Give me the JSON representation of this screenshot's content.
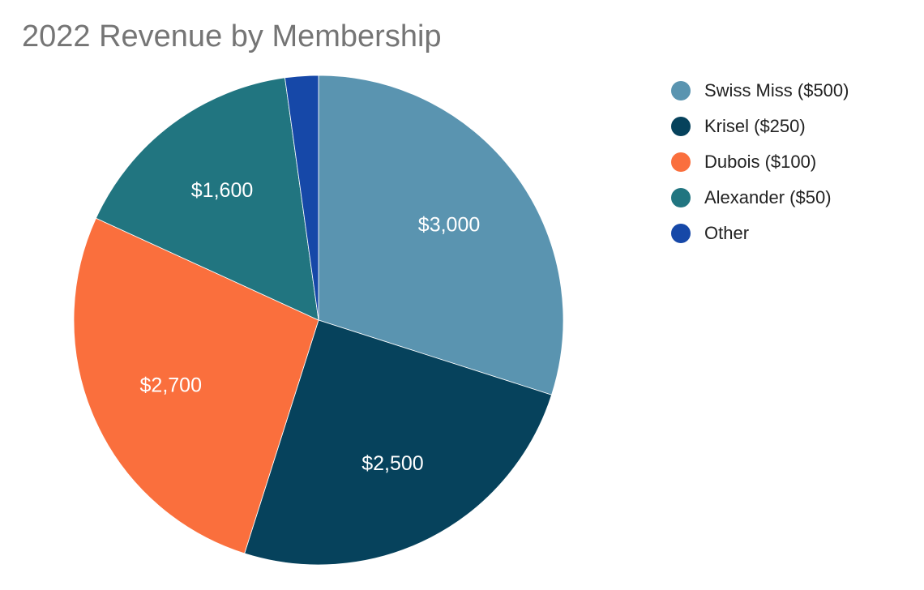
{
  "chart_data": {
    "type": "pie",
    "title": "2022 Revenue by Membership",
    "legend_position": "right",
    "slices": [
      {
        "name": "Swiss Miss ($500)",
        "value": 3000,
        "label": "$3,000",
        "color": "#5a94b0"
      },
      {
        "name": "Krisel ($250)",
        "value": 2500,
        "label": "$2,500",
        "color": "#06425c"
      },
      {
        "name": "Dubois ($100)",
        "value": 2700,
        "label": "$2,700",
        "color": "#fa6f3d"
      },
      {
        "name": "Alexander ($50)",
        "value": 1600,
        "label": "$1,600",
        "color": "#217580"
      },
      {
        "name": "Other",
        "value": 220,
        "label": "",
        "color": "#1648a8"
      }
    ]
  }
}
